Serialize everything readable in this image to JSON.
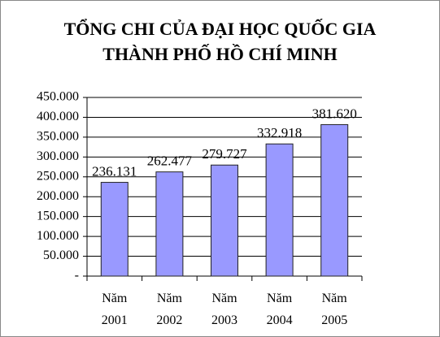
{
  "chart_data": {
    "type": "bar",
    "title": "TỔNG CHI CỦA ĐẠI HỌC QUỐC GIA THÀNH PHỐ HỒ CHÍ MINH",
    "categories": [
      "Năm 2001",
      "Năm 2002",
      "Năm 2003",
      "Năm 2004",
      "Năm 2005"
    ],
    "values": [
      236131,
      262477,
      279727,
      332918,
      381620
    ],
    "value_labels": [
      "236.131",
      "262.477",
      "279.727",
      "332.918",
      "381.620"
    ],
    "color": "#9999ff",
    "ylim": [
      0,
      450000
    ],
    "yticks": [
      {
        "value": 0,
        "label": "-"
      },
      {
        "value": 50000,
        "label": "50.000"
      },
      {
        "value": 100000,
        "label": "100.000"
      },
      {
        "value": 150000,
        "label": "150.000"
      },
      {
        "value": 200000,
        "label": "200.000"
      },
      {
        "value": 250000,
        "label": "250.000"
      },
      {
        "value": 300000,
        "label": "300.000"
      },
      {
        "value": 350000,
        "label": "350.000"
      },
      {
        "value": 400000,
        "label": "400.000"
      },
      {
        "value": 450000,
        "label": "450.000"
      }
    ],
    "grid": true
  }
}
